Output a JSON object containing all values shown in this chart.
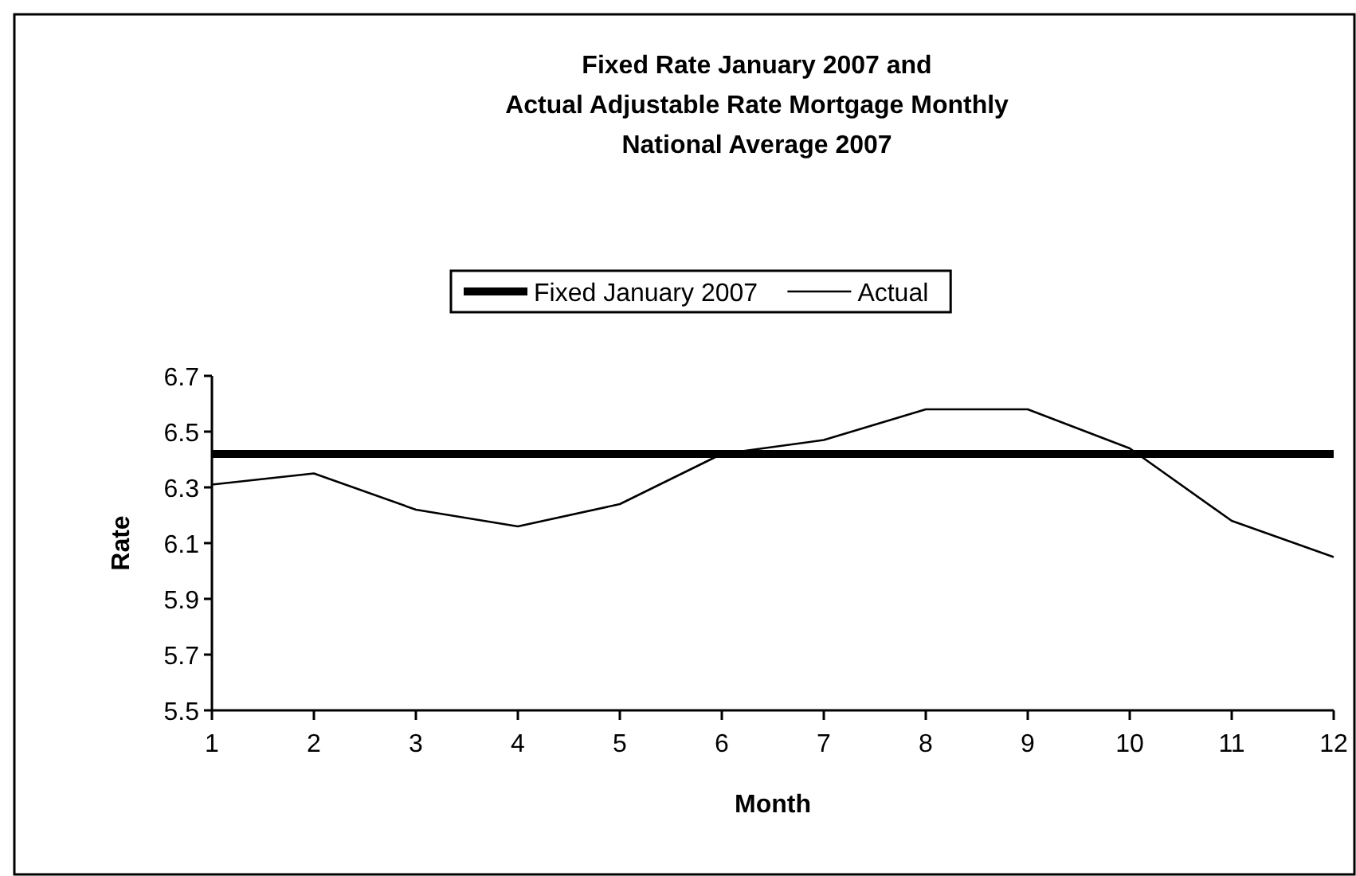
{
  "chart_data": {
    "type": "line",
    "title": "Fixed Rate January 2007 and\nActual Adjustable Rate Mortgage Monthly\nNational Average 2007",
    "xlabel": "Month",
    "ylabel": "Rate",
    "x": [
      1,
      2,
      3,
      4,
      5,
      6,
      7,
      8,
      9,
      10,
      11,
      12
    ],
    "xlim": [
      1,
      12
    ],
    "xticks": [
      1,
      2,
      3,
      4,
      5,
      6,
      7,
      8,
      9,
      10,
      11,
      12
    ],
    "ylim": [
      5.5,
      6.7
    ],
    "yticks": [
      5.5,
      5.7,
      5.9,
      6.1,
      6.3,
      6.5,
      6.7
    ],
    "grid": false,
    "legend": "top",
    "marker": "none",
    "line_style": "solid",
    "series": [
      {
        "name": "Fixed January 2007",
        "color": "#000000",
        "values": [
          6.42,
          6.42,
          6.42,
          6.42,
          6.42,
          6.42,
          6.42,
          6.42,
          6.42,
          6.42,
          6.42,
          6.42
        ]
      },
      {
        "name": "Actual",
        "color": "#000000",
        "values": [
          6.31,
          6.35,
          6.22,
          6.16,
          6.24,
          6.42,
          6.47,
          6.58,
          6.58,
          6.44,
          6.18,
          6.05
        ]
      }
    ]
  }
}
